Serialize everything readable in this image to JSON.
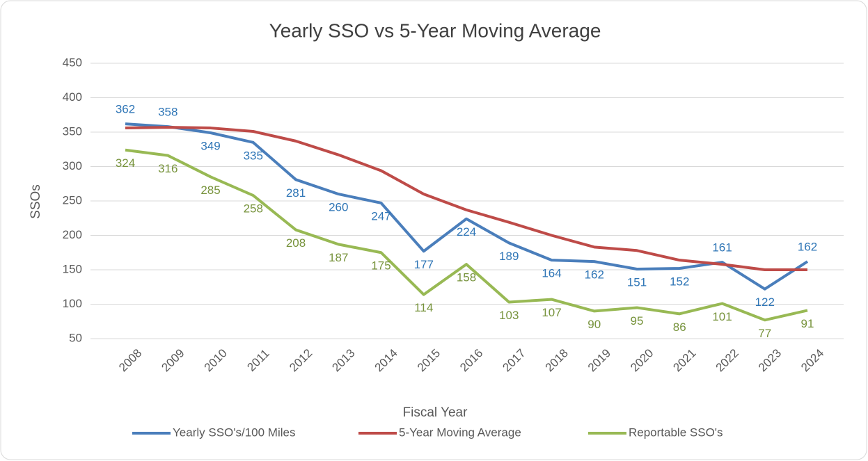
{
  "chart_data": {
    "type": "line",
    "title": "Yearly SSO vs 5-Year Moving Average",
    "x_label": "Fiscal Year",
    "y_label": "SSOs",
    "categories": [
      "2008",
      "2009",
      "2010",
      "2011",
      "2012",
      "2013",
      "2014",
      "2015",
      "2016",
      "2017",
      "2018",
      "2019",
      "2020",
      "2021",
      "2022",
      "2023",
      "2024"
    ],
    "series": [
      {
        "name": "Yearly SSO's/100 Miles",
        "color": "#4a7ebb",
        "label_color": "#2e75b6",
        "values": [
          362,
          358,
          349,
          335,
          281,
          260,
          247,
          177,
          224,
          189,
          164,
          162,
          151,
          152,
          161,
          122,
          162
        ]
      },
      {
        "name": "5-Year Moving Average",
        "color": "#be4b48",
        "values": [
          356,
          357,
          356,
          351,
          337,
          317,
          294,
          260,
          237,
          219,
          200,
          183,
          178,
          164,
          158,
          150,
          150
        ]
      },
      {
        "name": "Reportable SSO's",
        "color": "#98b954",
        "label_color": "#77933c",
        "values": [
          324,
          316,
          285,
          258,
          208,
          187,
          175,
          114,
          158,
          103,
          107,
          90,
          95,
          86,
          101,
          77,
          91
        ]
      }
    ],
    "ylim": [
      50,
      450
    ],
    "yticks": [
      50,
      100,
      150,
      200,
      250,
      300,
      350,
      400,
      450
    ],
    "grid": true,
    "legend": "bottom"
  }
}
